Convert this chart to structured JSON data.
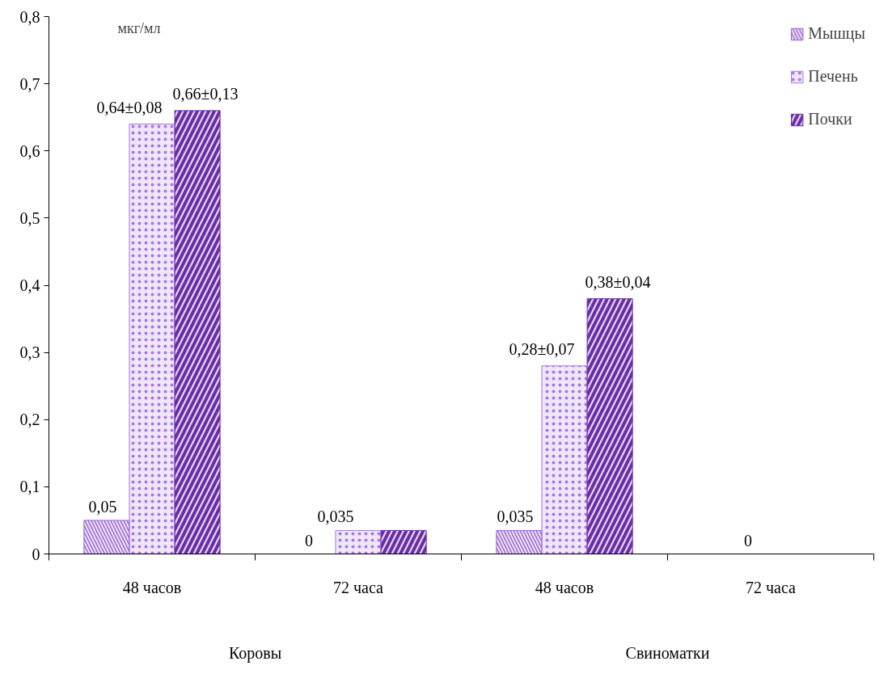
{
  "chart_data": {
    "type": "bar",
    "ylabel": "мкг/мл",
    "categories": [
      "48 часов",
      "72 часа",
      "48 часов",
      "72 часа"
    ],
    "series": [
      {
        "name": "Мышцы",
        "color": "#9a66d0",
        "values": [
          0.05,
          0,
          0.035,
          0
        ],
        "value_labels": [
          "0,05",
          "0",
          "0,035",
          null
        ]
      },
      {
        "name": "Печень",
        "color": "#a878e0",
        "values": [
          0.64,
          0.035,
          0.28,
          0
        ],
        "value_labels": [
          "0,64±0,08",
          "0,035",
          "0,28±0,07",
          "0"
        ]
      },
      {
        "name": "Почки",
        "color": "#6a2ca8",
        "values": [
          0.66,
          0.035,
          0.38,
          0
        ],
        "value_labels": [
          "0,66±0,13",
          null,
          "0,38±0,04",
          null
        ]
      }
    ],
    "ylim": [
      0,
      0.8
    ],
    "yticks": [
      0,
      {
        "value": 0.1,
        "label": "0,1"
      },
      {
        "value": 0.2,
        "label": "0,2"
      },
      {
        "value": 0.3,
        "label": "0,3"
      },
      {
        "value": 0.4,
        "label": "0,4"
      },
      {
        "value": 0.5,
        "label": "0,5"
      },
      {
        "value": 0.6,
        "label": "0,6"
      },
      {
        "value": 0.7,
        "label": "0,7"
      },
      {
        "value": 0.8,
        "label": "0,8"
      }
    ],
    "annotations": [
      "Коровы",
      "Свиноматки"
    ],
    "legend": "top right",
    "grid": false
  }
}
